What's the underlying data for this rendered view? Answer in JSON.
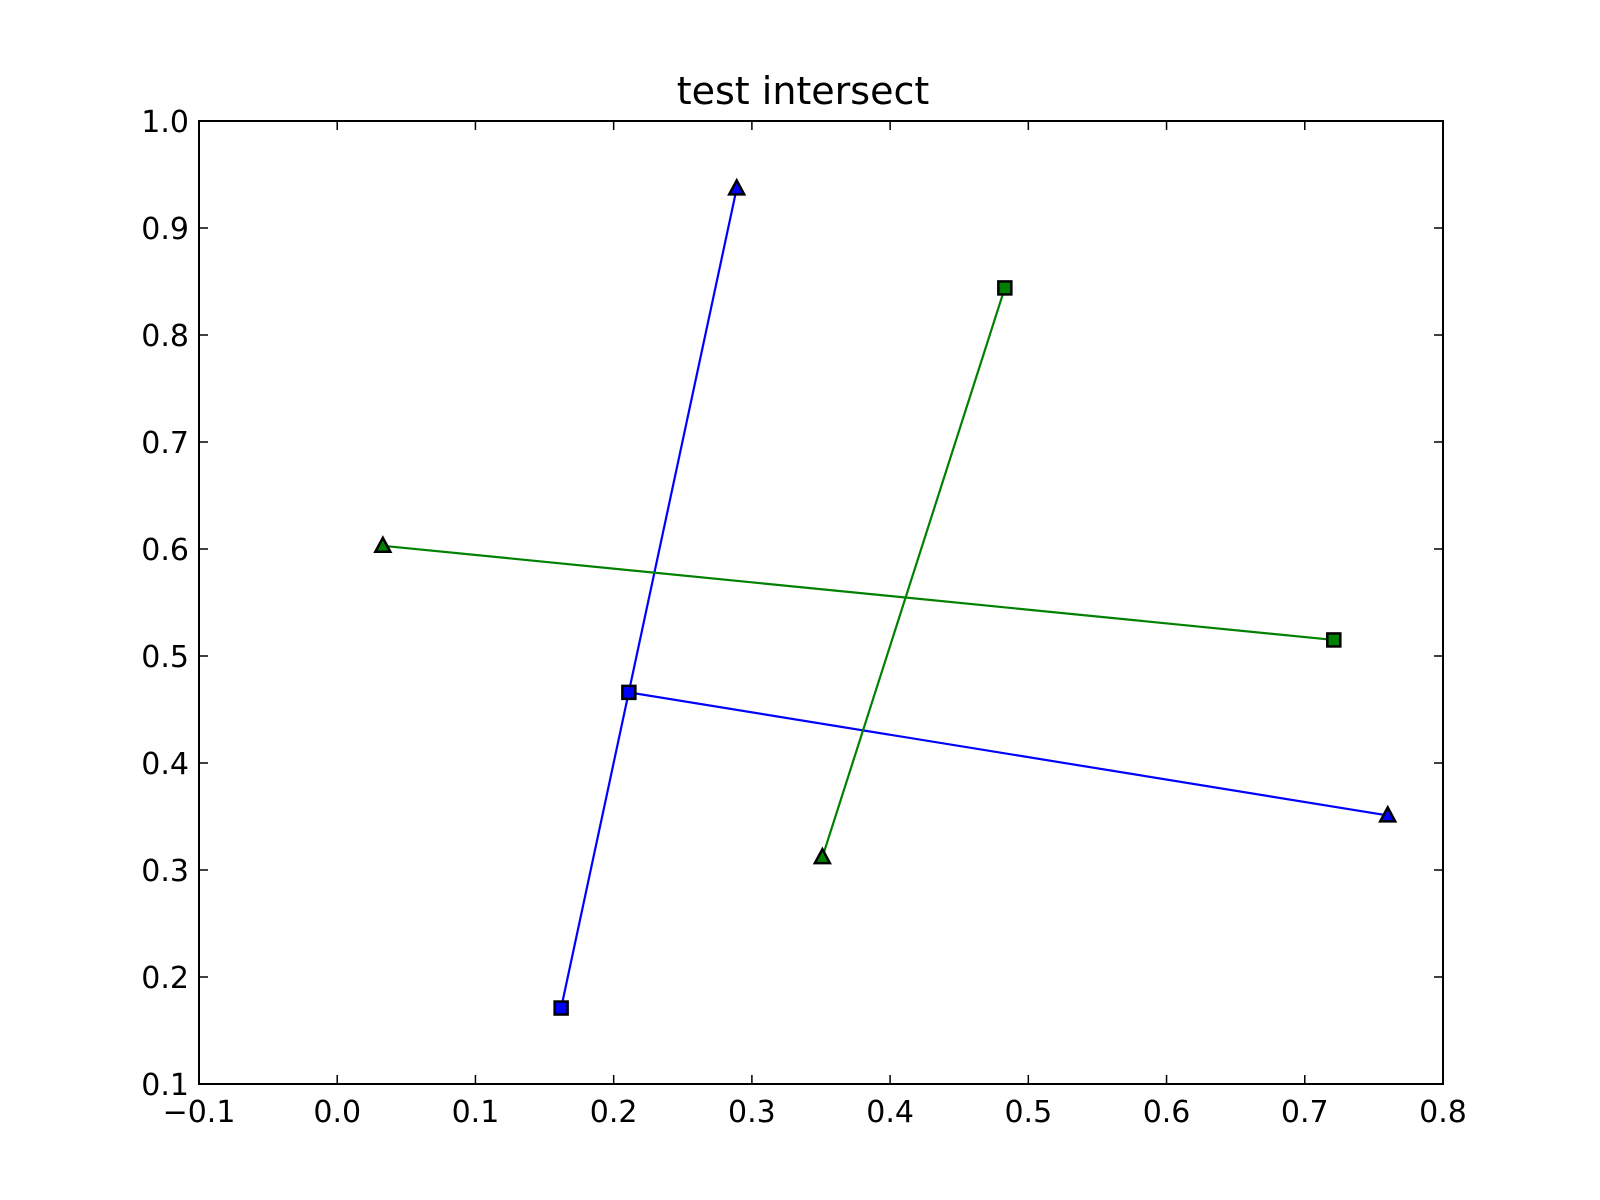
{
  "chart_data": {
    "type": "line",
    "title": "test intersect",
    "xlabel": "",
    "ylabel": "",
    "xlim": [
      -0.1,
      0.8
    ],
    "ylim": [
      0.1,
      1.0
    ],
    "xticks": [
      "−0.1",
      "0.0",
      "0.1",
      "0.2",
      "0.3",
      "0.4",
      "0.5",
      "0.6",
      "0.7",
      "0.8"
    ],
    "xtick_values": [
      -0.1,
      0.0,
      0.1,
      0.2,
      0.3,
      0.4,
      0.5,
      0.6,
      0.7,
      0.8
    ],
    "yticks": [
      "0.1",
      "0.2",
      "0.3",
      "0.4",
      "0.5",
      "0.6",
      "0.7",
      "0.8",
      "0.9",
      "1.0"
    ],
    "ytick_values": [
      0.1,
      0.2,
      0.3,
      0.4,
      0.5,
      0.6,
      0.7,
      0.8,
      0.9,
      1.0
    ],
    "grid": false,
    "series": [
      {
        "color": "#0000ff",
        "start_marker": "square",
        "end_marker": "triangle",
        "x": [
          0.162,
          0.289
        ],
        "y": [
          0.171,
          0.937
        ]
      },
      {
        "color": "#0000ff",
        "start_marker": "square",
        "end_marker": "triangle",
        "x": [
          0.211,
          0.76
        ],
        "y": [
          0.466,
          0.351
        ]
      },
      {
        "color": "#008000",
        "start_marker": "square",
        "end_marker": "triangle",
        "x": [
          0.483,
          0.351
        ],
        "y": [
          0.844,
          0.312
        ]
      },
      {
        "color": "#008000",
        "start_marker": "square",
        "end_marker": "triangle",
        "x": [
          0.721,
          0.033
        ],
        "y": [
          0.515,
          0.603
        ]
      }
    ]
  }
}
